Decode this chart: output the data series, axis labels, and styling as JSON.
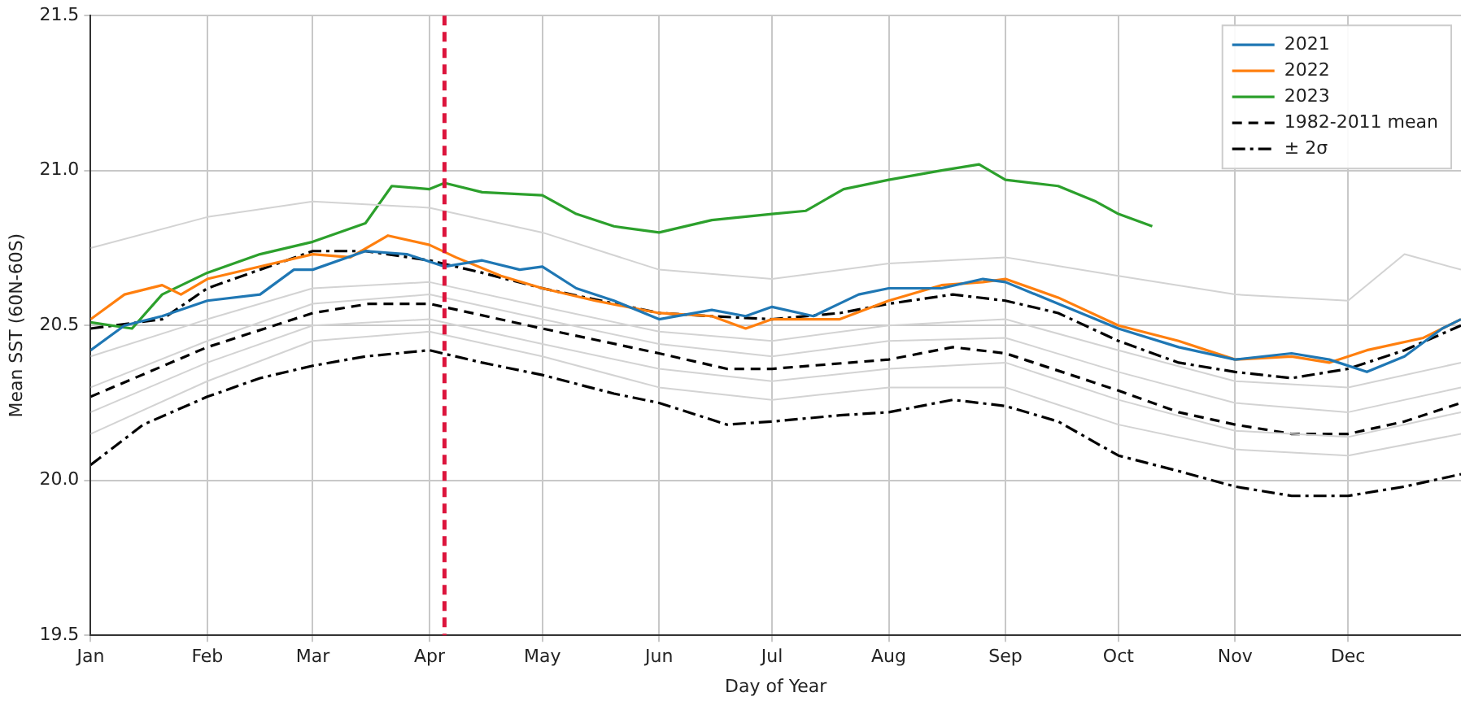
{
  "chart_data": {
    "type": "line",
    "xlabel": "Day of Year",
    "ylabel": "Mean SST (60N-60S)",
    "xlim": [
      "--01-01",
      "--12-31"
    ],
    "ylim": [
      19.5,
      21.5
    ],
    "xticks": [
      {
        "value": "--01-01",
        "label": "Jan"
      },
      {
        "value": "--02-01",
        "label": "Feb"
      },
      {
        "value": "--03-01",
        "label": "Mar"
      },
      {
        "value": "--04-01",
        "label": "Apr"
      },
      {
        "value": "--05-01",
        "label": "May"
      },
      {
        "value": "--06-01",
        "label": "Jun"
      },
      {
        "value": "--07-01",
        "label": "Jul"
      },
      {
        "value": "--08-01",
        "label": "Aug"
      },
      {
        "value": "--09-01",
        "label": "Sep"
      },
      {
        "value": "--10-01",
        "label": "Oct"
      },
      {
        "value": "--11-01",
        "label": "Nov"
      },
      {
        "value": "--12-01",
        "label": "Dec"
      }
    ],
    "yticks": [
      {
        "value": 19.5,
        "label": "19.5"
      },
      {
        "value": 20,
        "label": "20.0"
      },
      {
        "value": 20.5,
        "label": "20.5"
      },
      {
        "value": 21,
        "label": "21.0"
      },
      {
        "value": 21.5,
        "label": "21.5"
      }
    ],
    "grid": true,
    "legend": "top right",
    "marker": "none",
    "ref_lines": [
      {
        "axis": "x",
        "value": "--04-05",
        "color": "#dc143c",
        "line_style": "dashed"
      }
    ],
    "series": [
      {
        "color": "#d3d3d3",
        "x": [
          "--01-01",
          "--02-01",
          "--03-01",
          "--04-01",
          "--05-01",
          "--06-01",
          "--07-01",
          "--08-01",
          "--09-01",
          "--10-01",
          "--11-01",
          "--12-01",
          "--12-16",
          "--12-31"
        ],
        "values": [
          20.75,
          20.85,
          20.9,
          20.88,
          20.8,
          20.68,
          20.65,
          20.7,
          20.72,
          20.66,
          20.6,
          20.58,
          20.73,
          20.68
        ]
      },
      {
        "color": "#d3d3d3",
        "x": [
          "--01-01",
          "--02-01",
          "--03-01",
          "--04-01",
          "--05-01",
          "--06-01",
          "--07-01",
          "--08-01",
          "--09-01",
          "--10-01",
          "--11-01",
          "--12-01",
          "--12-31"
        ],
        "values": [
          20.4,
          20.52,
          20.62,
          20.64,
          20.56,
          20.48,
          20.45,
          20.5,
          20.52,
          20.42,
          20.32,
          20.3,
          20.38
        ]
      },
      {
        "color": "#d3d3d3",
        "x": [
          "--01-01",
          "--02-01",
          "--03-01",
          "--04-01",
          "--05-01",
          "--06-01",
          "--07-01",
          "--08-01",
          "--09-01",
          "--10-01",
          "--11-01",
          "--12-01",
          "--12-31"
        ],
        "values": [
          20.3,
          20.45,
          20.57,
          20.6,
          20.52,
          20.44,
          20.4,
          20.45,
          20.46,
          20.35,
          20.25,
          20.22,
          20.3
        ]
      },
      {
        "color": "#d3d3d3",
        "x": [
          "--01-01",
          "--02-01",
          "--03-01",
          "--04-01",
          "--05-01",
          "--06-01",
          "--07-01",
          "--08-01",
          "--09-01",
          "--10-01",
          "--11-01",
          "--12-01",
          "--12-31"
        ],
        "values": [
          20.22,
          20.38,
          20.5,
          20.52,
          20.44,
          20.36,
          20.32,
          20.36,
          20.38,
          20.26,
          20.16,
          20.14,
          20.22
        ]
      },
      {
        "color": "#d3d3d3",
        "x": [
          "--01-01",
          "--02-01",
          "--03-01",
          "--04-01",
          "--05-01",
          "--06-01",
          "--07-01",
          "--08-01",
          "--09-01",
          "--10-01",
          "--11-01",
          "--12-01",
          "--12-31"
        ],
        "values": [
          20.15,
          20.32,
          20.45,
          20.48,
          20.4,
          20.3,
          20.26,
          20.3,
          20.3,
          20.18,
          20.1,
          20.08,
          20.15
        ]
      },
      {
        "name": "2021",
        "color": "#1f77b4",
        "x": [
          "--01-01",
          "--01-10",
          "--01-20",
          "--02-01",
          "--02-15",
          "--02-24",
          "--03-01",
          "--03-15",
          "--03-26",
          "--04-05",
          "--04-15",
          "--04-25",
          "--05-01",
          "--05-10",
          "--05-20",
          "--06-01",
          "--06-15",
          "--06-24",
          "--07-01",
          "--07-12",
          "--07-24",
          "--08-01",
          "--08-15",
          "--08-26",
          "--09-01",
          "--09-15",
          "--10-01",
          "--10-17",
          "--11-01",
          "--11-16",
          "--11-26",
          "--12-06",
          "--12-16",
          "--12-26",
          "--12-31"
        ],
        "values": [
          20.42,
          20.5,
          20.53,
          20.58,
          20.6,
          20.68,
          20.68,
          20.74,
          20.73,
          20.69,
          20.71,
          20.68,
          20.69,
          20.62,
          20.58,
          20.52,
          20.55,
          20.53,
          20.56,
          20.53,
          20.6,
          20.62,
          20.62,
          20.65,
          20.64,
          20.57,
          20.49,
          20.43,
          20.39,
          20.41,
          20.39,
          20.35,
          20.4,
          20.49,
          20.52
        ]
      },
      {
        "name": "2022",
        "color": "#ff7f0e",
        "x": [
          "--01-01",
          "--01-10",
          "--01-20",
          "--01-25",
          "--02-01",
          "--02-15",
          "--03-01",
          "--03-11",
          "--03-21",
          "--04-01",
          "--04-08",
          "--04-20",
          "--05-01",
          "--05-15",
          "--06-01",
          "--06-15",
          "--06-24",
          "--07-01",
          "--07-19",
          "--08-01",
          "--08-15",
          "--08-26",
          "--09-01",
          "--09-15",
          "--10-01",
          "--10-17",
          "--11-01",
          "--11-16",
          "--11-26",
          "--12-06",
          "--12-21",
          "--12-31"
        ],
        "values": [
          20.52,
          20.6,
          20.63,
          20.6,
          20.65,
          20.69,
          20.73,
          20.72,
          20.79,
          20.76,
          20.72,
          20.66,
          20.62,
          20.58,
          20.54,
          20.53,
          20.49,
          20.52,
          20.52,
          20.58,
          20.63,
          20.64,
          20.65,
          20.59,
          20.5,
          20.45,
          20.39,
          20.4,
          20.38,
          20.42,
          20.46,
          20.52
        ]
      },
      {
        "name": "2023",
        "color": "#2ca02c",
        "x": [
          "--01-01",
          "--01-12",
          "--01-20",
          "--02-01",
          "--02-15",
          "--03-01",
          "--03-15",
          "--03-22",
          "--04-01",
          "--04-05",
          "--04-15",
          "--05-01",
          "--05-10",
          "--05-20",
          "--06-01",
          "--06-15",
          "--07-01",
          "--07-10",
          "--07-20",
          "--08-01",
          "--08-15",
          "--08-25",
          "--09-01",
          "--09-15",
          "--09-25",
          "--10-01",
          "--10-10"
        ],
        "values": [
          20.51,
          20.49,
          20.6,
          20.67,
          20.73,
          20.77,
          20.83,
          20.95,
          20.94,
          20.96,
          20.93,
          20.92,
          20.86,
          20.82,
          20.8,
          20.84,
          20.86,
          20.87,
          20.94,
          20.97,
          21.0,
          21.02,
          20.97,
          20.95,
          20.9,
          20.86,
          20.82
        ]
      },
      {
        "name": "1982-2011 mean",
        "color": "#000000",
        "line_style": "dashed",
        "x": [
          "--01-01",
          "--02-01",
          "--03-01",
          "--03-16",
          "--04-01",
          "--05-01",
          "--06-01",
          "--06-19",
          "--07-01",
          "--08-01",
          "--08-18",
          "--09-01",
          "--10-01",
          "--10-17",
          "--11-01",
          "--11-16",
          "--12-01",
          "--12-16",
          "--12-31"
        ],
        "values": [
          20.27,
          20.43,
          20.54,
          20.57,
          20.57,
          20.49,
          20.41,
          20.36,
          20.36,
          20.39,
          20.43,
          20.41,
          20.29,
          20.22,
          20.18,
          20.15,
          20.15,
          20.19,
          20.25
        ]
      },
      {
        "name": "± 2σ",
        "color": "#000000",
        "line_style": "dashdot",
        "x": [
          "--01-01",
          "--01-20",
          "--02-01",
          "--02-15",
          "--03-01",
          "--03-15",
          "--04-01",
          "--04-15",
          "--05-01",
          "--06-01",
          "--06-15",
          "--07-01",
          "--07-19",
          "--08-01",
          "--08-18",
          "--09-01",
          "--09-15",
          "--10-01",
          "--10-17",
          "--11-01",
          "--11-16",
          "--12-01",
          "--12-16",
          "--12-31"
        ],
        "values": [
          20.49,
          20.52,
          20.62,
          20.68,
          20.74,
          20.74,
          20.71,
          20.67,
          20.62,
          20.54,
          20.53,
          20.52,
          20.54,
          20.57,
          20.6,
          20.58,
          20.54,
          20.45,
          20.38,
          20.35,
          20.33,
          20.36,
          20.42,
          20.5
        ]
      },
      {
        "color": "#000000",
        "line_style": "dashdot",
        "x": [
          "--01-01",
          "--01-15",
          "--02-01",
          "--02-15",
          "--03-01",
          "--03-15",
          "--04-01",
          "--04-15",
          "--05-01",
          "--05-20",
          "--06-01",
          "--06-19",
          "--07-01",
          "--07-19",
          "--08-01",
          "--08-18",
          "--09-01",
          "--09-15",
          "--10-01",
          "--10-17",
          "--11-01",
          "--11-16",
          "--12-01",
          "--12-16",
          "--12-31"
        ],
        "values": [
          20.05,
          20.18,
          20.27,
          20.33,
          20.37,
          20.4,
          20.42,
          20.38,
          20.34,
          20.28,
          20.25,
          20.18,
          20.19,
          20.21,
          20.22,
          20.26,
          20.24,
          20.19,
          20.08,
          20.03,
          19.98,
          19.95,
          19.95,
          19.98,
          20.02
        ]
      }
    ]
  }
}
